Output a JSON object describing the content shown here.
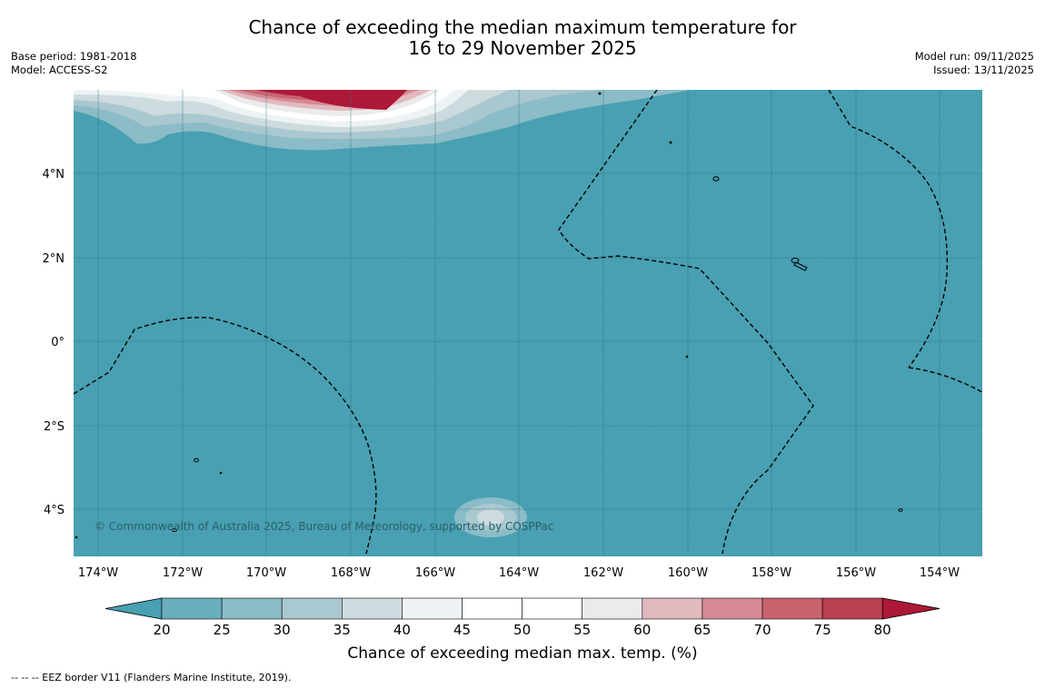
{
  "title": {
    "line1": "Chance of exceeding the median maximum temperature for",
    "line2": "16 to 29 November 2025"
  },
  "meta_left": {
    "base_period": "Base period: 1981-2018",
    "model": "Model: ACCESS-S2"
  },
  "meta_right": {
    "model_run": "Model run: 09/11/2025",
    "issued": "Issued: 13/11/2025"
  },
  "map": {
    "lon_labels": [
      "174°W",
      "172°W",
      "170°W",
      "168°W",
      "166°W",
      "164°W",
      "162°W",
      "160°W",
      "158°W",
      "156°W",
      "154°W"
    ],
    "lat_labels": [
      "4°N",
      "2°N",
      "0°",
      "2°S",
      "4°S"
    ],
    "copyright": "© Commonwealth of Australia 2025, Bureau of Meteorology, supported by COSPPac",
    "base_color": "#48a0b2"
  },
  "colorbar": {
    "ticks": [
      "20",
      "25",
      "30",
      "35",
      "40",
      "45",
      "50",
      "55",
      "60",
      "65",
      "70",
      "75",
      "80"
    ],
    "colors": [
      "#48a0b2",
      "#6aaebd",
      "#8bbcc7",
      "#aac8cf",
      "#cddbdf",
      "#edf3f5",
      "#ffffff",
      "#ffffff",
      "#ebebeb",
      "#e2b9bf",
      "#d68a95",
      "#c9646f",
      "#bb4152",
      "#ae1838"
    ],
    "label": "Chance of exceeding median max. temp. (%)"
  },
  "footer": "--  --  -- EEZ border V11 (Flanders Marine Institute, 2019)."
}
